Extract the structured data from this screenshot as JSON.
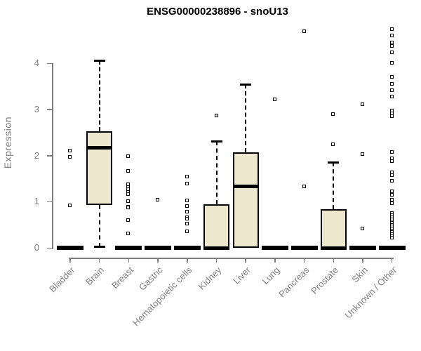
{
  "chart_data": {
    "type": "boxplot",
    "title": "ENSG00000238896 - snoU13",
    "xlabel": "",
    "ylabel": "Expression",
    "ylim": [
      0,
      4.8
    ],
    "yticks": [
      0,
      1,
      2,
      3,
      4
    ],
    "grid": false,
    "legend": "none",
    "categories": [
      "Bladder",
      "Brain",
      "Breast",
      "Gastric",
      "Hematopoietic cells",
      "Kidney",
      "Liver",
      "Lung",
      "Pancreas",
      "Prostate",
      "Skin",
      "Unknown / Other"
    ],
    "boxes": [
      {
        "category": "Bladder",
        "q1": 0,
        "median": 0,
        "q3": 0,
        "whisker_low": 0,
        "whisker_high": 0,
        "outliers": [
          2.1,
          1.96,
          0.92
        ]
      },
      {
        "category": "Brain",
        "q1": 0.93,
        "median": 2.16,
        "q3": 2.53,
        "whisker_low": 0.02,
        "whisker_high": 4.06,
        "outliers": []
      },
      {
        "category": "Breast",
        "q1": 0,
        "median": 0,
        "q3": 0,
        "whisker_low": 0,
        "whisker_high": 0,
        "outliers": [
          1.97,
          1.66,
          1.37,
          1.31,
          1.26,
          1.2,
          1.15,
          1.0,
          0.88,
          0.86,
          0.59,
          0.31
        ]
      },
      {
        "category": "Gastric",
        "q1": 0,
        "median": 0,
        "q3": 0,
        "whisker_low": 0,
        "whisker_high": 0,
        "outliers": [
          1.03
        ]
      },
      {
        "category": "Hematopoietic cells",
        "q1": 0,
        "median": 0,
        "q3": 0,
        "whisker_low": 0,
        "whisker_high": 0,
        "outliers": [
          1.53,
          1.38,
          1.02,
          0.9,
          0.78,
          0.65,
          0.63,
          0.51,
          0.35
        ]
      },
      {
        "category": "Kidney",
        "q1": 0,
        "median": 0,
        "q3": 0.94,
        "whisker_low": 0,
        "whisker_high": 2.31,
        "outliers": [
          2.86
        ]
      },
      {
        "category": "Liver",
        "q1": 0,
        "median": 1.33,
        "q3": 2.07,
        "whisker_low": 0,
        "whisker_high": 3.54,
        "outliers": []
      },
      {
        "category": "Lung",
        "q1": 0,
        "median": 0,
        "q3": 0,
        "whisker_low": 0,
        "whisker_high": 0,
        "outliers": [
          3.21
        ]
      },
      {
        "category": "Pancreas",
        "q1": 0,
        "median": 0,
        "q3": 0,
        "whisker_low": 0,
        "whisker_high": 0,
        "outliers": [
          4.68,
          1.32
        ]
      },
      {
        "category": "Prostate",
        "q1": 0,
        "median": 0,
        "q3": 0.83,
        "whisker_low": 0,
        "whisker_high": 1.85,
        "outliers": [
          2.89,
          2.24
        ]
      },
      {
        "category": "Skin",
        "q1": 0,
        "median": 0,
        "q3": 0,
        "whisker_low": 0,
        "whisker_high": 0,
        "outliers": [
          3.1,
          2.02,
          0.41
        ]
      },
      {
        "category": "Unknown / Other",
        "q1": 0,
        "median": 0,
        "q3": 0,
        "whisker_low": 0,
        "whisker_high": 0,
        "outliers": [
          4.73,
          4.59,
          4.44,
          4.36,
          4.23,
          4.0,
          3.69,
          3.55,
          3.41,
          3.27,
          2.97,
          2.9,
          2.84,
          2.07,
          1.93,
          1.87,
          1.63,
          1.56,
          1.44,
          1.21,
          1.14,
          1.03,
          0.96,
          0.75,
          0.7,
          0.66,
          0.61,
          0.57,
          0.53,
          0.49,
          0.45,
          0.41,
          0.37,
          0.33,
          0.29,
          0.25,
          0.22
        ]
      }
    ],
    "colors": {
      "box_fill": "#EDE8CD",
      "box_border": "#000000",
      "median": "#000000",
      "axis": "#7e7e7e",
      "tick_labels": "#808080",
      "title": "#000000",
      "background": "#ffffff"
    }
  }
}
